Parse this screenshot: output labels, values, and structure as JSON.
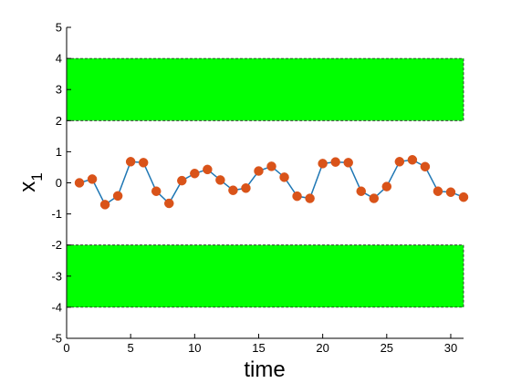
{
  "chart_data": {
    "type": "line",
    "title": "",
    "xlabel": "time",
    "ylabel_main": "x",
    "ylabel_sub": "1",
    "xlim": [
      0,
      31
    ],
    "ylim": [
      -5,
      5
    ],
    "xticks": [
      0,
      5,
      10,
      15,
      20,
      25,
      30
    ],
    "xtick_labels": [
      "0",
      "5",
      "10",
      "15",
      "20",
      "25",
      "30"
    ],
    "yticks": [
      -5,
      -4,
      -3,
      -2,
      -1,
      0,
      1,
      2,
      3,
      4,
      5
    ],
    "ytick_labels": [
      "-5",
      "-4",
      "-3",
      "-2",
      "-1",
      "0",
      "1",
      "2",
      "3",
      "4",
      "5"
    ],
    "grid": false,
    "legend": "none",
    "bands": [
      {
        "y_from": 2,
        "y_to": 4,
        "color": "#00ff00"
      },
      {
        "y_from": -4,
        "y_to": -2,
        "color": "#00ff00"
      }
    ],
    "series": [
      {
        "line_color": "#1f77b4",
        "marker_color": "#d95319",
        "x": [
          1,
          2,
          3,
          4,
          5,
          6,
          7,
          8,
          9,
          10,
          11,
          12,
          13,
          14,
          15,
          16,
          17,
          18,
          19,
          20,
          21,
          22,
          23,
          24,
          25,
          26,
          27,
          28,
          29,
          30,
          31
        ],
        "y": [
          0.0,
          0.12,
          -0.7,
          -0.42,
          0.68,
          0.65,
          -0.27,
          -0.66,
          0.07,
          0.3,
          0.43,
          0.09,
          -0.24,
          -0.17,
          0.38,
          0.53,
          0.18,
          -0.43,
          -0.5,
          0.62,
          0.67,
          0.65,
          -0.27,
          -0.5,
          -0.12,
          0.68,
          0.74,
          0.52,
          -0.27,
          -0.3,
          -0.46
        ]
      }
    ]
  }
}
